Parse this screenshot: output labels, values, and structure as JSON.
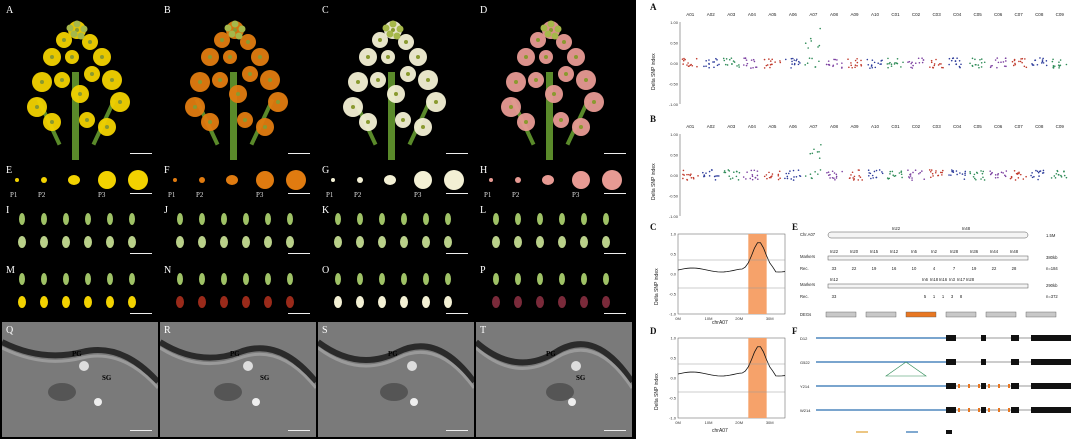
{
  "photo_panels": {
    "flowers": [
      "A",
      "B",
      "C",
      "D"
    ],
    "petals": [
      "E",
      "F",
      "G",
      "H"
    ],
    "stage_row1": [
      "I",
      "J",
      "K",
      "L"
    ],
    "stage_row2": [
      "M",
      "N",
      "O",
      "P"
    ],
    "tem": [
      "Q",
      "R",
      "S",
      "T"
    ]
  },
  "stage_labels": {
    "p1": "P1",
    "p2": "P2",
    "p3": "P3"
  },
  "tem_labels": {
    "pg": "PG",
    "sg": "SG"
  },
  "colors": {
    "yellow": "#f2d200",
    "orange": "#e07b10",
    "white": "#f3f0d4",
    "pink": "#e79a93",
    "highlight": "#f6a26a"
  },
  "manhattan": {
    "panel_a": "A",
    "panel_b": "B",
    "ylabel": "Delta SNP index",
    "chromosomes": [
      "A01",
      "A02",
      "A03",
      "A04",
      "A05",
      "A06",
      "A07",
      "A08",
      "A09",
      "A10",
      "C01",
      "C02",
      "C03",
      "C04",
      "C05",
      "C06",
      "C07",
      "C08",
      "C09"
    ],
    "ticks": [
      "1.00",
      "0.50",
      "0.00",
      "-0.50",
      "-1.00"
    ]
  },
  "chart_c": {
    "panel": "C",
    "xlabel": "chrA07",
    "ylabel": "Delta SNP index",
    "xticks": [
      "0M",
      "10M",
      "20M",
      "30M"
    ],
    "yticks": [
      "1.0",
      "0.5",
      "0.0",
      "-0.5",
      "-1.0"
    ]
  },
  "chart_d": {
    "panel": "D",
    "xlabel": "chrA07",
    "ylabel": "Delta SNP index",
    "xticks": [
      "0M",
      "10M",
      "20M",
      "30M"
    ],
    "yticks": [
      "1.0",
      "0.5",
      "0.0",
      "-0.5",
      "-1.0"
    ]
  },
  "map_e": {
    "panel": "E",
    "chr": "Chr.A07",
    "chr_markers": [
      "In22",
      "In48"
    ],
    "chr_size": "1.5M",
    "markers_label": "Markers",
    "markers1": [
      "In22",
      "In20",
      "In15",
      "In12",
      "In5",
      "In2",
      "In28",
      "In36",
      "In44",
      "In48"
    ],
    "rec_label": "Rec.",
    "rec1": [
      "33",
      "22",
      "19",
      "16",
      "10",
      "4",
      "7",
      "19",
      "22",
      "28"
    ],
    "size1": "380kb",
    "n1": "n=184",
    "markers2": [
      "In12",
      "In6",
      "In18",
      "In16",
      "In3",
      "In17",
      "In28"
    ],
    "rec2": [
      "33",
      "5",
      "1",
      "1",
      "3",
      "8"
    ],
    "size2": "290kb",
    "n2": "n=372",
    "degs_label": "DEGs"
  },
  "gene_f": {
    "panel": "F",
    "rows": [
      "D12",
      "G522",
      "Y214",
      "W214"
    ]
  }
}
